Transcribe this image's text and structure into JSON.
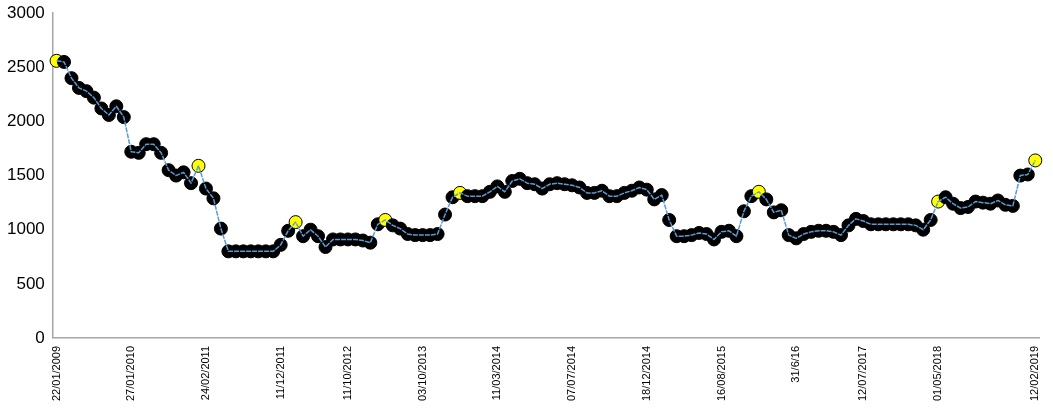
{
  "chart_data": {
    "type": "line",
    "categories": [
      "22/01/2009",
      null,
      null,
      null,
      null,
      null,
      null,
      null,
      null,
      null,
      "27/01/2010",
      null,
      null,
      null,
      null,
      null,
      null,
      null,
      null,
      null,
      "24/02/2011",
      null,
      null,
      null,
      null,
      null,
      null,
      null,
      null,
      null,
      "11/12/2011",
      null,
      null,
      null,
      null,
      null,
      null,
      null,
      null,
      "11/10/2012",
      null,
      null,
      null,
      null,
      null,
      null,
      null,
      null,
      null,
      "03/10/2013",
      null,
      null,
      null,
      null,
      null,
      null,
      null,
      null,
      null,
      "11/03/2014",
      null,
      null,
      null,
      null,
      null,
      null,
      null,
      null,
      null,
      "07/07/2014",
      null,
      null,
      null,
      null,
      null,
      null,
      null,
      null,
      null,
      "18/12/2014",
      null,
      null,
      null,
      null,
      null,
      null,
      null,
      null,
      null,
      "16/08/2015",
      null,
      null,
      null,
      null,
      null,
      null,
      null,
      null,
      null,
      "31/6/16",
      null,
      null,
      null,
      null,
      null,
      null,
      null,
      null,
      "12/07/2017",
      null,
      null,
      null,
      null,
      null,
      null,
      null,
      null,
      null,
      "01/05/2018",
      null,
      null,
      null,
      null,
      null,
      null,
      null,
      null,
      null,
      null,
      null,
      null,
      "12/02/2019"
    ],
    "series": [
      {
        "color": "#5b9bd5",
        "values": [
          2560,
          2550,
          2400,
          2310,
          2280,
          2220,
          2120,
          2060,
          2140,
          2040,
          1720,
          1710,
          1790,
          1790,
          1710,
          1550,
          1500,
          1530,
          1430,
          1590,
          1380,
          1290,
          1010,
          800,
          800,
          800,
          800,
          800,
          800,
          800,
          860,
          990,
          1070,
          940,
          1000,
          940,
          840,
          910,
          910,
          910,
          910,
          900,
          880,
          1050,
          1090,
          1040,
          1010,
          960,
          950,
          950,
          950,
          960,
          1140,
          1300,
          1340,
          1310,
          1310,
          1310,
          1350,
          1400,
          1350,
          1450,
          1470,
          1430,
          1420,
          1380,
          1420,
          1430,
          1420,
          1410,
          1390,
          1340,
          1340,
          1360,
          1310,
          1310,
          1340,
          1360,
          1390,
          1370,
          1280,
          1320,
          1090,
          940,
          940,
          950,
          970,
          960,
          910,
          980,
          990,
          940,
          1170,
          1310,
          1350,
          1280,
          1160,
          1180,
          950,
          920,
          960,
          980,
          990,
          990,
          980,
          950,
          1040,
          1100,
          1080,
          1050,
          1050,
          1050,
          1050,
          1050,
          1050,
          1040,
          1000,
          1090,
          1260,
          1300,
          1240,
          1200,
          1210,
          1260,
          1250,
          1240,
          1270,
          1230,
          1220,
          1500,
          1510,
          1640
        ],
        "colors": [
          "#ffff00",
          "#000000",
          "#000000",
          "#000000",
          "#000000",
          "#000000",
          "#000000",
          "#000000",
          "#000000",
          "#000000",
          "#000000",
          "#000000",
          "#000000",
          "#000000",
          "#000000",
          "#000000",
          "#000000",
          "#000000",
          "#000000",
          "#ffff00",
          "#000000",
          "#000000",
          "#000000",
          "#000000",
          "#000000",
          "#000000",
          "#000000",
          "#000000",
          "#000000",
          "#000000",
          "#000000",
          "#000000",
          "#ffff00",
          "#000000",
          "#000000",
          "#000000",
          "#000000",
          "#000000",
          "#000000",
          "#000000",
          "#000000",
          "#000000",
          "#000000",
          "#000000",
          "#ffff00",
          "#000000",
          "#000000",
          "#000000",
          "#000000",
          "#000000",
          "#000000",
          "#000000",
          "#000000",
          "#000000",
          "#ffff00",
          "#000000",
          "#000000",
          "#000000",
          "#000000",
          "#000000",
          "#000000",
          "#000000",
          "#000000",
          "#000000",
          "#000000",
          "#000000",
          "#000000",
          "#000000",
          "#000000",
          "#000000",
          "#000000",
          "#000000",
          "#000000",
          "#000000",
          "#000000",
          "#000000",
          "#000000",
          "#000000",
          "#000000",
          "#000000",
          "#000000",
          "#000000",
          "#000000",
          "#000000",
          "#000000",
          "#000000",
          "#000000",
          "#000000",
          "#000000",
          "#000000",
          "#000000",
          "#000000",
          "#000000",
          "#000000",
          "#ffff00",
          "#000000",
          "#000000",
          "#000000",
          "#000000",
          "#000000",
          "#000000",
          "#000000",
          "#000000",
          "#000000",
          "#000000",
          "#000000",
          "#000000",
          "#000000",
          "#000000",
          "#000000",
          "#000000",
          "#000000",
          "#000000",
          "#000000",
          "#000000",
          "#000000",
          "#000000",
          "#000000",
          "#ffff00",
          "#000000",
          "#000000",
          "#000000",
          "#000000",
          "#000000",
          "#000000",
          "#000000",
          "#000000",
          "#000000",
          "#000000",
          "#000000",
          "#000000",
          "#ffff00"
        ]
      }
    ],
    "ylim": [
      0,
      3000
    ],
    "yticks": [
      0,
      500,
      1000,
      1500,
      2000,
      2500,
      3000
    ],
    "marker": "circle",
    "line_style": "dashed"
  }
}
